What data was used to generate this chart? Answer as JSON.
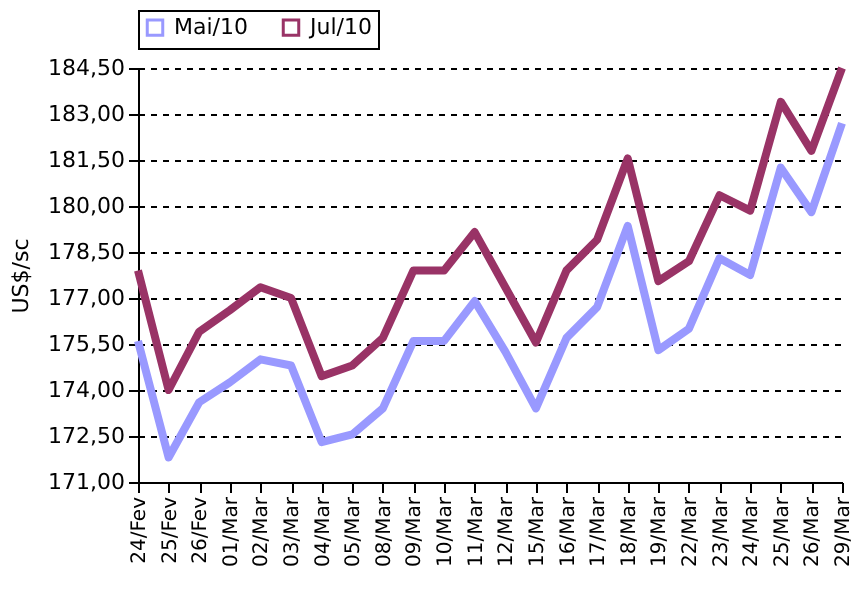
{
  "chart_data": {
    "type": "line",
    "ylabel": "US$/sc",
    "categories": [
      "24/Fev",
      "25/Fev",
      "26/Fev",
      "01/Mar",
      "02/Mar",
      "03/Mar",
      "04/Mar",
      "05/Mar",
      "08/Mar",
      "09/Mar",
      "10/Mar",
      "11/Mar",
      "12/Mar",
      "15/Mar",
      "16/Mar",
      "17/Mar",
      "18/Mar",
      "19/Mar",
      "22/Mar",
      "23/Mar",
      "24/Mar",
      "25/Mar",
      "26/Mar",
      "29/Mar"
    ],
    "series": [
      {
        "name": "Mai/10",
        "color": "#9999ff",
        "values": [
          175.6,
          171.8,
          173.6,
          174.25,
          175.0,
          174.8,
          172.3,
          172.55,
          173.4,
          175.6,
          175.6,
          176.9,
          175.25,
          173.4,
          175.7,
          176.7,
          179.35,
          175.3,
          176.0,
          178.3,
          177.75,
          181.25,
          179.8,
          182.7
        ]
      },
      {
        "name": "Jul/10",
        "color": "#993366",
        "values": [
          177.9,
          174.0,
          175.9,
          176.6,
          177.35,
          177.0,
          174.45,
          174.8,
          175.7,
          177.9,
          177.9,
          179.15,
          177.35,
          175.55,
          177.9,
          178.9,
          181.55,
          177.55,
          178.2,
          180.35,
          179.85,
          183.4,
          181.8,
          184.5
        ]
      }
    ],
    "ylim": [
      171,
      184.5
    ],
    "yticks": [
      {
        "value": 171,
        "label": "171,00"
      },
      {
        "value": 172.5,
        "label": "172,50"
      },
      {
        "value": 174,
        "label": "174,00"
      },
      {
        "value": 175.5,
        "label": "175,50"
      },
      {
        "value": 177,
        "label": "177,00"
      },
      {
        "value": 178.5,
        "label": "178,50"
      },
      {
        "value": 180,
        "label": "180,00"
      },
      {
        "value": 181.5,
        "label": "181,50"
      },
      {
        "value": 183,
        "label": "183,00"
      },
      {
        "value": 184.5,
        "label": "184,50"
      }
    ],
    "grid": "y",
    "line_style": "solid",
    "marker": "none",
    "legend": "top"
  }
}
